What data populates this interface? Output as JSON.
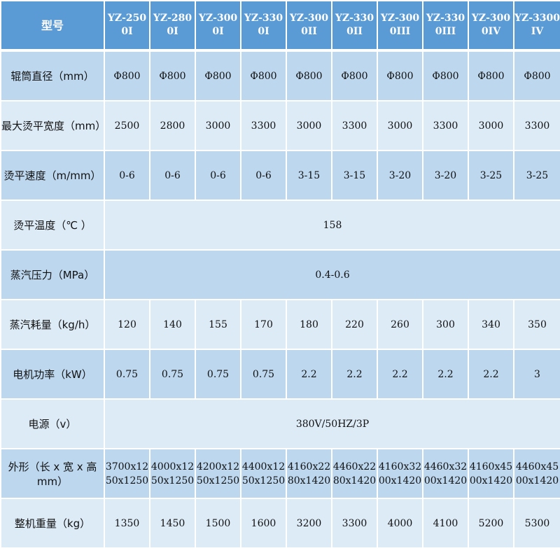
{
  "header": {
    "label": "型号",
    "models": [
      "YZ-2500I",
      "YZ-2800I",
      "YZ-3000I",
      "YZ-3300I",
      "YZ-3000II",
      "YZ-3300II",
      "YZ-3000III",
      "YZ-3300III",
      "YZ-3000IV",
      "YZ-3300IV"
    ]
  },
  "rows": [
    {
      "label": "辊筒直径（mm）",
      "values": [
        "Φ800",
        "Φ800",
        "Φ800",
        "Φ800",
        "Φ800",
        "Φ800",
        "Φ800",
        "Φ800",
        "Φ800",
        "Φ800"
      ]
    },
    {
      "label": "最大烫平宽度（mm）",
      "values": [
        "2500",
        "2800",
        "3000",
        "3300",
        "3000",
        "3300",
        "3000",
        "3300",
        "3000",
        "3300"
      ]
    },
    {
      "label": "烫平速度（m/mm）",
      "values": [
        "0-6",
        "0-6",
        "0-6",
        "0-6",
        "3-15",
        "3-15",
        "3-20",
        "3-20",
        "3-25",
        "3-25"
      ]
    },
    {
      "label": "烫平温度（℃ ）",
      "merged": "158"
    },
    {
      "label": "蒸汽压力（MPa）",
      "merged": "0.4-0.6"
    },
    {
      "label": "蒸汽耗量（kg/h）",
      "values": [
        "120",
        "140",
        "155",
        "170",
        "180",
        "220",
        "260",
        "300",
        "340",
        "350"
      ]
    },
    {
      "label": "电机功率（kW）",
      "values": [
        "0.75",
        "0.75",
        "0.75",
        "0.75",
        "2.2",
        "2.2",
        "2.2",
        "2.2",
        "2.2",
        "3"
      ]
    },
    {
      "label": "电源（v）",
      "merged": "380V/50HZ/3P"
    },
    {
      "label": "外形（长 x 宽 x 高mm）",
      "values": [
        "3700x1250x1250",
        "4000x1250x1250",
        "4200x1250x1250",
        "4400x1250x1250",
        "4160x2280x1420",
        "4460x2280x1420",
        "4160x3200x1420",
        "4460x3200x1420",
        "4160x4500x1420",
        "4460x4500x1420"
      ]
    },
    {
      "label": "整机重量（kg）",
      "values": [
        "1350",
        "1450",
        "1500",
        "1600",
        "3200",
        "3300",
        "4000",
        "4100",
        "5200",
        "5300"
      ]
    }
  ]
}
